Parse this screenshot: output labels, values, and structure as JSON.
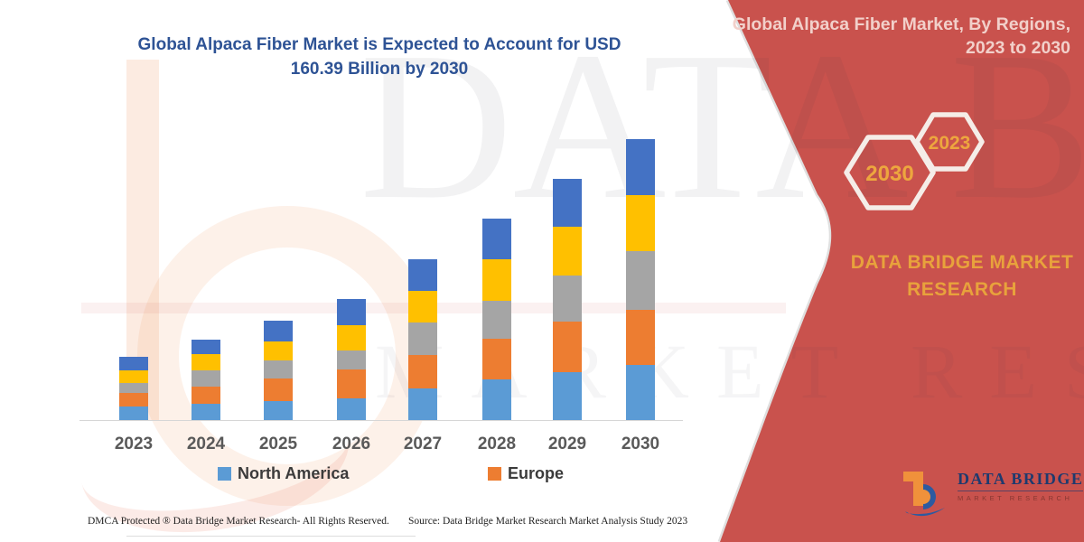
{
  "colors": {
    "panel_red": "#C9524D",
    "hex_outline": "#F5EDE8",
    "gold": "#E8A23C",
    "title_blue": "#2E5395",
    "axis_gray": "#D6D6D6",
    "logo_navy": "#1E3A6E",
    "logo_orange": "#F0913B",
    "logo_blue": "#2D5AA0"
  },
  "main_title": {
    "line1": "Global Alpaca Fiber Market is Expected to Account for USD",
    "line2": "160.39 Billion by 2030"
  },
  "chart_data": {
    "type": "bar",
    "stacked": true,
    "title": "Global Alpaca Fiber Market is Expected to Account for USD 160.39 Billion by 2030",
    "unit": "USD Billion",
    "categories": [
      "2023",
      "2024",
      "2025",
      "2026",
      "2027",
      "2028",
      "2029",
      "2030"
    ],
    "series": [
      {
        "name": "North America",
        "color": "#5B9BD5",
        "in_legend": true,
        "values": [
          8.1,
          9.9,
          11.5,
          12.7,
          18.5,
          23.5,
          27.8,
          32.1
        ]
      },
      {
        "name": "Europe",
        "color": "#ED7D31",
        "in_legend": true,
        "values": [
          7.7,
          9.8,
          12.9,
          16.8,
          19.2,
          23.3,
          28.7,
          31.2
        ]
      },
      {
        "name": "Unlabeled (gray)",
        "color": "#A5A5A5",
        "in_legend": false,
        "values": [
          6.0,
          9.4,
          10.3,
          10.7,
          18.4,
          21.8,
          26.2,
          33.4
        ]
      },
      {
        "name": "Unlabeled (yellow)",
        "color": "#FFC000",
        "in_legend": false,
        "values": [
          6.8,
          8.9,
          10.8,
          14.6,
          18.0,
          23.7,
          27.8,
          31.9
        ]
      },
      {
        "name": "Unlabeled (dark blue)",
        "color": "#4472C4",
        "in_legend": false,
        "values": [
          7.7,
          8.6,
          11.8,
          14.6,
          18.2,
          23.0,
          27.6,
          31.8
        ]
      }
    ],
    "totals": [
      36.3,
      46.6,
      57.3,
      69.4,
      92.3,
      115.3,
      138.1,
      160.39
    ],
    "ylim": [
      0,
      165
    ],
    "grid": false,
    "y_axis_shown": false,
    "legend_position": "bottom",
    "legend_entries": [
      "North America",
      "Europe"
    ]
  },
  "legend": {
    "items": [
      {
        "label": "North America",
        "color": "#5B9BD5"
      },
      {
        "label": "Europe",
        "color": "#ED7D31"
      }
    ]
  },
  "side_panel": {
    "title_line1": "Global Alpaca Fiber Market, By Regions,",
    "title_line2": "2023 to 2030",
    "hexagon_left_label": "2030",
    "hexagon_right_label": "2023",
    "brand_line1": "DATA BRIDGE MARKET",
    "brand_line2": "RESEARCH"
  },
  "logo": {
    "name": "DATA BRIDGE",
    "subtitle": "MARKET RESEARCH"
  },
  "watermark": {
    "line1": "DATA BRIDGE",
    "line2": "MARKET RESEARCH"
  },
  "footer": {
    "left": "DMCA Protected ® Data Bridge Market Research-  All Rights Reserved.",
    "right": "Source: Data Bridge Market Research  Market Analysis Study 2023"
  }
}
